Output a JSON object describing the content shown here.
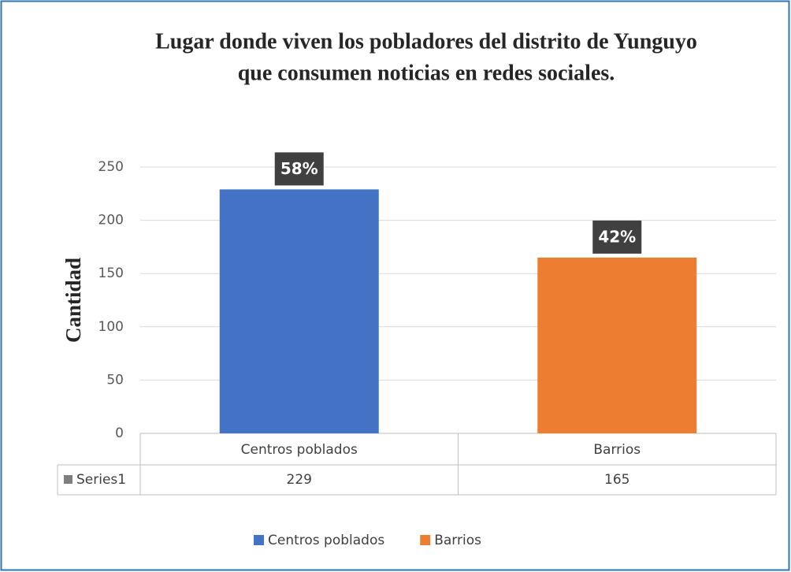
{
  "chart_data": {
    "type": "bar",
    "title": [
      "Lugar donde viven los pobladores del distrito de Yunguyo",
      "que consumen noticias en redes sociales."
    ],
    "y_label": "Cantidad",
    "categories": [
      "Centros poblados",
      "Barrios"
    ],
    "series_name": "Series1",
    "values": [
      229,
      165
    ],
    "data_labels": [
      "58%",
      "42%"
    ],
    "colors": [
      "#4472c4",
      "#ed7d31"
    ],
    "ylim": [
      0,
      250
    ],
    "yticks": [
      0,
      50,
      100,
      150,
      200,
      250
    ],
    "grid": true,
    "legend": "bottom"
  }
}
